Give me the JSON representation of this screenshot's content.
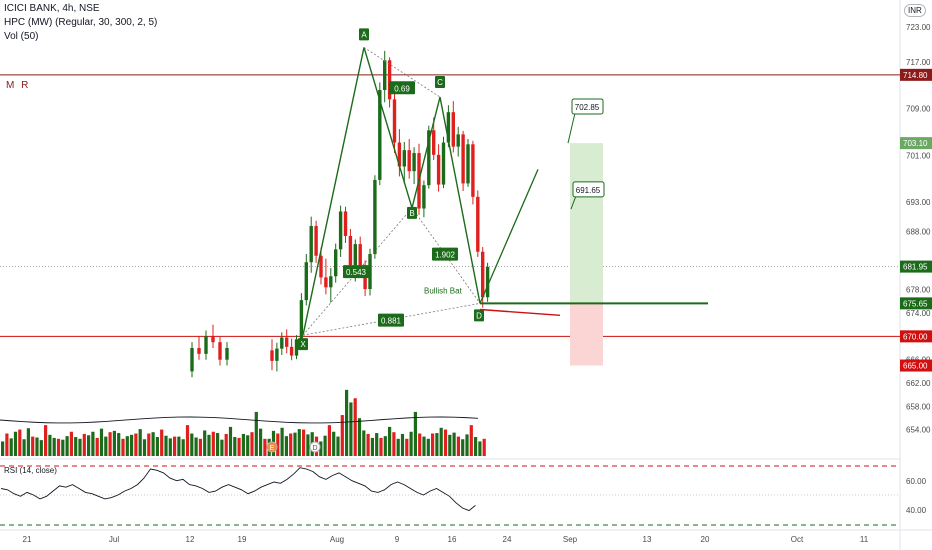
{
  "header": {
    "title": "ICICI BANK, 4h, NSE",
    "indicator1": "HPC (MW) (Regular, 30, 300, 2, 5)",
    "indicator2": "Vol (50)",
    "mr_label": "M R",
    "currency_badge": "INR",
    "rsi_label": "RSI (14, close)"
  },
  "colors": {
    "up": "#1b6b1b",
    "down": "#e0201e",
    "pattern": "#1b6b1b",
    "resistance": "#8b1a1a",
    "support": "#cc1111",
    "profit_zone": "#d8ecd2",
    "loss_zone": "#fbd4d4"
  },
  "chart_data": {
    "type": "candlestick",
    "timeframe": "4h",
    "symbol": "ICICI BANK",
    "exchange": "NSE",
    "price_axis": {
      "ticks": [
        723.0,
        717.0,
        709.0,
        701.0,
        693.0,
        688.0,
        678.0,
        674.0,
        666.0,
        662.0,
        658.0,
        654.0
      ],
      "range": [
        651,
        727
      ]
    },
    "x_axis_ticks": [
      "21",
      "Jul",
      "12",
      "19",
      "Aug",
      "9",
      "16",
      "24",
      "Sep",
      "13",
      "20",
      "Oct",
      "11"
    ],
    "price_labels": [
      {
        "value": "723.00",
        "kind": "tick"
      },
      {
        "value": "714.80",
        "kind": "resistance"
      },
      {
        "value": "703.10",
        "kind": "target"
      },
      {
        "value": "681.95",
        "kind": "last"
      },
      {
        "value": "675.65",
        "kind": "entry"
      },
      {
        "value": "670.00",
        "kind": "support"
      },
      {
        "value": "665.00",
        "kind": "stop"
      }
    ],
    "levels": {
      "resistance": 714.8,
      "last_price": 681.95,
      "entry": 675.65,
      "support": 670.0,
      "stop": 665.0,
      "target": 703.1
    },
    "candles": [
      {
        "i": 1,
        "o": 667.6,
        "h": 669.5,
        "l": 664.2,
        "c": 665.8
      },
      {
        "i": 2,
        "o": 665.8,
        "h": 668.9,
        "l": 664.0,
        "c": 667.9
      },
      {
        "i": 3,
        "o": 667.9,
        "h": 670.7,
        "l": 666.8,
        "c": 669.8
      },
      {
        "i": 4,
        "o": 669.8,
        "h": 671.2,
        "l": 667.1,
        "c": 668.2
      },
      {
        "i": 5,
        "o": 668.2,
        "h": 669.6,
        "l": 665.9,
        "c": 666.7
      },
      {
        "i": 6,
        "o": 666.7,
        "h": 670.2,
        "l": 666.1,
        "c": 669.5
      },
      {
        "i": 7,
        "o": 669.5,
        "h": 677.4,
        "l": 669.0,
        "c": 676.2
      },
      {
        "i": 8,
        "o": 676.2,
        "h": 684.1,
        "l": 675.3,
        "c": 682.7
      },
      {
        "i": 9,
        "o": 682.7,
        "h": 690.5,
        "l": 680.9,
        "c": 688.9
      },
      {
        "i": 10,
        "o": 688.9,
        "h": 689.8,
        "l": 682.6,
        "c": 683.8
      },
      {
        "i": 11,
        "o": 683.8,
        "h": 685.2,
        "l": 678.9,
        "c": 680.1
      },
      {
        "i": 12,
        "o": 680.1,
        "h": 683.3,
        "l": 677.2,
        "c": 678.4
      },
      {
        "i": 13,
        "o": 678.4,
        "h": 681.7,
        "l": 675.8,
        "c": 680.3
      },
      {
        "i": 14,
        "o": 680.3,
        "h": 685.9,
        "l": 679.2,
        "c": 684.9
      },
      {
        "i": 15,
        "o": 684.9,
        "h": 692.4,
        "l": 683.6,
        "c": 691.4
      },
      {
        "i": 16,
        "o": 691.4,
        "h": 692.2,
        "l": 686.0,
        "c": 687.2
      },
      {
        "i": 17,
        "o": 687.2,
        "h": 688.4,
        "l": 681.3,
        "c": 682.2
      },
      {
        "i": 18,
        "o": 682.2,
        "h": 686.6,
        "l": 679.4,
        "c": 685.8
      },
      {
        "i": 19,
        "o": 685.8,
        "h": 687.1,
        "l": 680.7,
        "c": 681.6
      },
      {
        "i": 20,
        "o": 681.6,
        "h": 683.0,
        "l": 676.9,
        "c": 678.1
      },
      {
        "i": 21,
        "o": 678.1,
        "h": 685.0,
        "l": 677.0,
        "c": 684.1
      },
      {
        "i": 22,
        "o": 684.1,
        "h": 697.6,
        "l": 683.3,
        "c": 696.8
      },
      {
        "i": 23,
        "o": 696.8,
        "h": 713.5,
        "l": 695.9,
        "c": 712.2
      },
      {
        "i": 24,
        "o": 712.2,
        "h": 718.9,
        "l": 710.1,
        "c": 717.3
      },
      {
        "i": 25,
        "o": 717.3,
        "h": 717.8,
        "l": 709.2,
        "c": 710.6
      },
      {
        "i": 26,
        "o": 710.6,
        "h": 711.8,
        "l": 701.4,
        "c": 703.2
      },
      {
        "i": 27,
        "o": 703.2,
        "h": 705.5,
        "l": 697.4,
        "c": 699.1
      },
      {
        "i": 28,
        "o": 699.1,
        "h": 703.3,
        "l": 696.2,
        "c": 701.9
      },
      {
        "i": 29,
        "o": 701.9,
        "h": 703.8,
        "l": 697.0,
        "c": 698.3
      },
      {
        "i": 30,
        "o": 698.3,
        "h": 702.4,
        "l": 696.1,
        "c": 701.4
      },
      {
        "i": 31,
        "o": 701.4,
        "h": 703.0,
        "l": 690.8,
        "c": 691.9
      },
      {
        "i": 32,
        "o": 691.9,
        "h": 696.7,
        "l": 690.4,
        "c": 695.9
      },
      {
        "i": 33,
        "o": 695.9,
        "h": 706.1,
        "l": 695.3,
        "c": 705.3
      },
      {
        "i": 34,
        "o": 705.3,
        "h": 707.5,
        "l": 700.2,
        "c": 701.1
      },
      {
        "i": 35,
        "o": 701.1,
        "h": 702.9,
        "l": 694.8,
        "c": 696.0
      },
      {
        "i": 36,
        "o": 696.0,
        "h": 704.2,
        "l": 695.4,
        "c": 703.2
      },
      {
        "i": 37,
        "o": 703.2,
        "h": 709.6,
        "l": 702.4,
        "c": 708.4
      },
      {
        "i": 38,
        "o": 708.4,
        "h": 710.3,
        "l": 701.5,
        "c": 702.5
      },
      {
        "i": 39,
        "o": 702.5,
        "h": 705.9,
        "l": 700.8,
        "c": 704.6
      },
      {
        "i": 40,
        "o": 704.6,
        "h": 705.2,
        "l": 694.9,
        "c": 696.2
      },
      {
        "i": 41,
        "o": 696.2,
        "h": 703.8,
        "l": 695.6,
        "c": 702.9
      },
      {
        "i": 42,
        "o": 702.9,
        "h": 703.5,
        "l": 692.6,
        "c": 693.9
      },
      {
        "i": 43,
        "o": 693.9,
        "h": 695.0,
        "l": 683.6,
        "c": 684.5
      },
      {
        "i": 44,
        "o": 684.5,
        "h": 685.3,
        "l": 674.9,
        "c": 676.7
      },
      {
        "i": 45,
        "o": 676.7,
        "h": 682.6,
        "l": 675.9,
        "c": 681.9
      }
    ],
    "volume": {
      "up_heights": [
        0.33,
        0.46,
        0.4,
        0.55,
        0.44,
        0.38,
        0.63,
        0.51,
        0.42,
        0.36,
        0.58,
        0.48,
        0.41,
        0.52,
        0.37,
        0.45,
        0.66,
        0.43,
        0.39,
        0.5,
        0.47,
        0.55,
        1.0,
        0.62,
        0.44,
        0.39,
        0.57,
        0.52,
        0.64,
        0.45,
        0.48,
        0.53,
        0.61,
        0.38,
        0.49,
        0.54,
        0.43
      ],
      "down_heights": [
        0.42,
        0.51,
        0.36,
        0.47,
        0.6,
        0.38,
        0.53,
        0.44,
        0.49,
        0.4,
        0.7,
        0.57,
        0.46,
        0.39,
        0.52,
        0.48,
        0.55,
        0.43,
        0.62,
        0.5,
        0.45,
        0.58,
        0.41,
        0.47,
        0.66,
        0.54,
        0.44,
        0.49,
        0.39,
        0.56,
        0.48,
        0.51,
        0.6
      ]
    },
    "pattern": {
      "name": "Bullish Bat",
      "points": [
        {
          "label": "X",
          "price": 670.2
        },
        {
          "label": "A",
          "price": 719.5
        },
        {
          "label": "B",
          "price": 692.0
        },
        {
          "label": "C",
          "price": 711.0
        },
        {
          "label": "D",
          "price": 675.65
        }
      ],
      "ratios": [
        {
          "value": "0.69",
          "leg": "AC"
        },
        {
          "value": "0.543",
          "leg": "XB"
        },
        {
          "value": "1.902",
          "leg": "BD"
        },
        {
          "value": "0.881",
          "leg": "XD"
        }
      ]
    },
    "targets": [
      "702.85",
      "691.65"
    ],
    "event_markers": [
      "E",
      "D"
    ],
    "rsi": {
      "label": "RSI (14, close)",
      "ticks": [
        "60.00",
        "40.00"
      ],
      "values": [
        55,
        54,
        51,
        49,
        52,
        50,
        47,
        49,
        53,
        57,
        56,
        58,
        55,
        52,
        51,
        49,
        47,
        48,
        50,
        53,
        55,
        58,
        63,
        70,
        69,
        67,
        63,
        61,
        62,
        58,
        57,
        55,
        52,
        53,
        56,
        58,
        56,
        54,
        51,
        53,
        56,
        58,
        60,
        59,
        62,
        66,
        71,
        70,
        68,
        64,
        62,
        65,
        67,
        64,
        61,
        59,
        57,
        53,
        52,
        54,
        58,
        60,
        58,
        55,
        52,
        50,
        53,
        55,
        52,
        49,
        44,
        40,
        38,
        42
      ]
    }
  }
}
